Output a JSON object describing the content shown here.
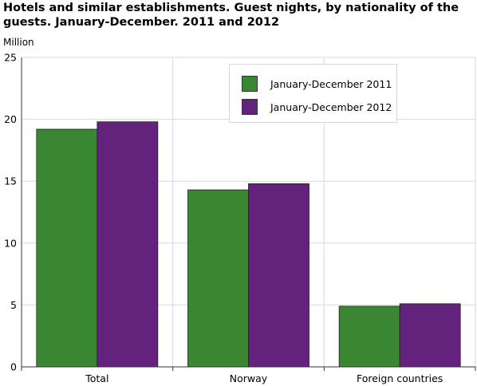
{
  "title": "Hotels and similar establishments. Guest nights, by nationality of the guests. January-December. 2011 and 2012",
  "chart_data": {
    "type": "bar",
    "title": "Hotels and similar establishments. Guest nights, by nationality of the guests. January-December. 2011 and 2012",
    "ylabel": "Million",
    "xlabel": "",
    "categories": [
      "Total",
      "Norway",
      "Foreign countries"
    ],
    "series": [
      {
        "name": "January-December 2011",
        "color": "#3a8633",
        "values": [
          19.2,
          14.3,
          4.9
        ]
      },
      {
        "name": "January-December 2012",
        "color": "#63237d",
        "values": [
          19.8,
          14.8,
          5.1
        ]
      }
    ],
    "ylim": [
      0,
      25
    ],
    "yticks": [
      0,
      5,
      10,
      15,
      20,
      25
    ],
    "grid": true,
    "legend_position": "top-right"
  }
}
